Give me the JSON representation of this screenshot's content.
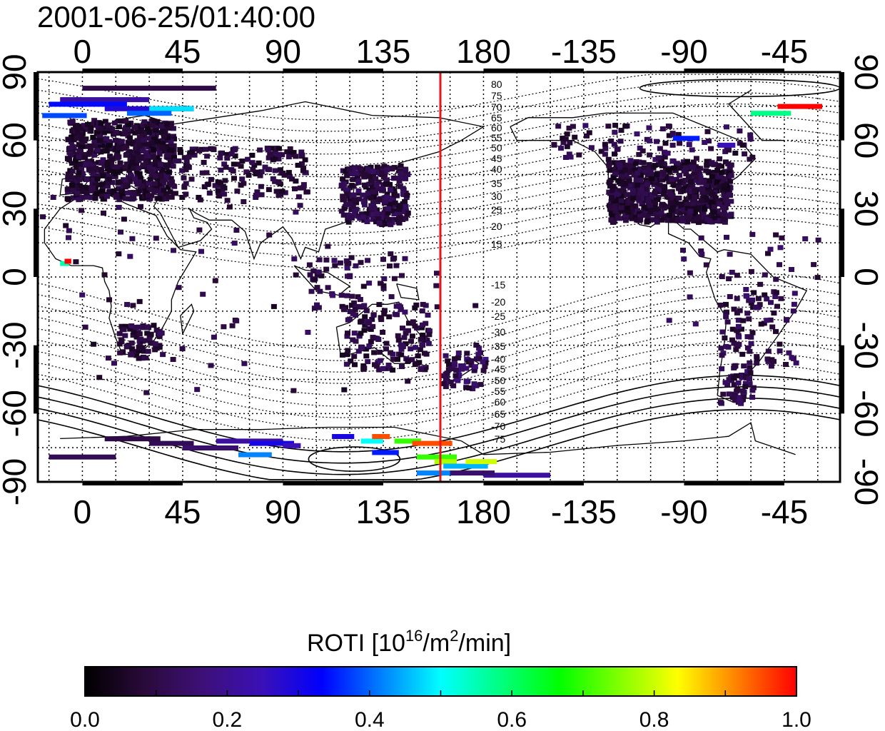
{
  "title": "2001-06-25/01:40:00",
  "map": {
    "lon_ticks_top": [
      "0",
      "45",
      "90",
      "135",
      "180",
      "-135",
      "-90",
      "-45"
    ],
    "lon_ticks_bottom": [
      "0",
      "45",
      "90",
      "135",
      "180",
      "-135",
      "-90",
      "-45"
    ],
    "lat_ticks_left": [
      "90",
      "60",
      "30",
      "0",
      "-30",
      "-60",
      "-90"
    ],
    "lat_ticks_right": [
      "90",
      "60",
      "30",
      "0",
      "-30",
      "-60",
      "-90"
    ],
    "lon_tick_values": [
      0,
      45,
      90,
      135,
      180,
      225,
      270,
      315
    ],
    "lat_tick_values": [
      90,
      60,
      30,
      0,
      -30,
      -60,
      -90
    ],
    "lon_range": [
      -20,
      340
    ],
    "lat_range": [
      -90,
      90
    ],
    "grid": true,
    "terminator_longitude": 155,
    "terminator_color": "#e8161b",
    "magnetic_latitude_labels_north": [
      "80",
      "75",
      "70",
      "65",
      "60",
      "55",
      "50",
      "45",
      "40",
      "35",
      "30",
      "25",
      "20",
      "15"
    ],
    "magnetic_latitude_labels_south": [
      "-15",
      "-20",
      "-25",
      "-30",
      "-35",
      "-40",
      "-45",
      "-50",
      "-55",
      "-60",
      "-65",
      "-70",
      "-75"
    ]
  },
  "colorbar": {
    "title_main": "ROTI  [10",
    "title_sup1": "16",
    "title_mid": "/m",
    "title_sup2": "2",
    "title_end": "/min]",
    "tick_labels": [
      "0.0",
      "0.2",
      "0.4",
      "0.6",
      "0.8",
      "1.0"
    ],
    "min": 0.0,
    "max": 1.0,
    "colormap": [
      "#000000",
      "#2a0a3a",
      "#3d1078",
      "#3a10b8",
      "#0000ff",
      "#0080ff",
      "#00ffff",
      "#00ff80",
      "#00ff00",
      "#80ff00",
      "#ffff00",
      "#ff8000",
      "#ff0000"
    ]
  }
}
